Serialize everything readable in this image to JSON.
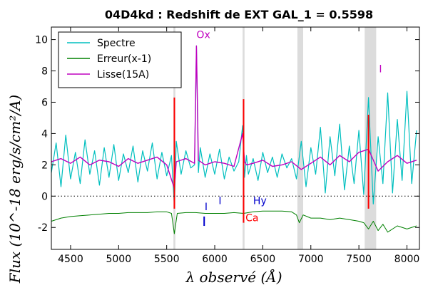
{
  "chart_data": {
    "type": "line",
    "title": "04D4kd : Redshift de EXT GAL_1 = 0.5598",
    "xlabel": "λ observé (Å)",
    "ylabel": "Flux (10^-18 erg/s/cm²/A)",
    "xlim": [
      4300,
      8130
    ],
    "ylim": [
      -3.4,
      10.8
    ],
    "x_ticks": [
      4500,
      5000,
      5500,
      6000,
      6500,
      7000,
      7500,
      8000
    ],
    "y_ticks": [
      -2,
      0,
      2,
      4,
      6,
      8,
      10
    ],
    "grid": false,
    "zero_line": true,
    "legend": {
      "position": "top-left",
      "entries": [
        {
          "label": "Spectre",
          "color": "#00bfbf"
        },
        {
          "label": "Erreur(x-1)",
          "color": "#008000"
        },
        {
          "label": "Lisse(15A)",
          "color": "#bf00bf"
        }
      ]
    },
    "series": [
      {
        "name": "Spectre",
        "color": "#00bfbf",
        "x": [
          4300,
          4350,
          4400,
          4450,
          4500,
          4550,
          4600,
          4650,
          4700,
          4750,
          4800,
          4850,
          4900,
          4950,
          5000,
          5050,
          5100,
          5150,
          5200,
          5250,
          5300,
          5350,
          5400,
          5450,
          5500,
          5550,
          5580,
          5600,
          5650,
          5700,
          5750,
          5790,
          5810,
          5830,
          5850,
          5900,
          5950,
          6000,
          6050,
          6100,
          6150,
          6200,
          6250,
          6290,
          6310,
          6330,
          6350,
          6400,
          6450,
          6500,
          6550,
          6600,
          6650,
          6700,
          6750,
          6800,
          6850,
          6900,
          6950,
          7000,
          7050,
          7100,
          7150,
          7200,
          7250,
          7300,
          7350,
          7400,
          7450,
          7500,
          7550,
          7600,
          7650,
          7700,
          7750,
          7800,
          7850,
          7900,
          7950,
          8000,
          8050,
          8100
        ],
        "y": [
          1.5,
          3.4,
          0.6,
          3.9,
          1.1,
          2.8,
          0.8,
          3.6,
          1.4,
          2.9,
          0.7,
          3.1,
          1.2,
          3.3,
          1.0,
          2.7,
          1.5,
          3.2,
          0.9,
          2.9,
          1.6,
          3.4,
          1.1,
          2.8,
          1.3,
          2.6,
          -0.6,
          3.5,
          1.4,
          2.9,
          1.8,
          2.0,
          9.6,
          1.5,
          3.1,
          1.2,
          2.7,
          1.4,
          3.0,
          1.1,
          2.5,
          1.6,
          2.2,
          4.5,
          1.2,
          2.6,
          1.4,
          2.4,
          1.0,
          2.8,
          1.5,
          2.5,
          1.2,
          2.7,
          1.8,
          2.4,
          1.1,
          3.5,
          0.6,
          3.1,
          1.4,
          4.4,
          0.2,
          3.8,
          1.3,
          4.6,
          0.4,
          3.2,
          0.8,
          4.2,
          0.1,
          6.3,
          -0.5,
          3.8,
          0.8,
          6.6,
          0.2,
          4.9,
          1.0,
          6.7,
          0.8,
          4.2
        ]
      },
      {
        "name": "Erreur(x-1)",
        "color": "#008000",
        "x": [
          4300,
          4400,
          4500,
          4600,
          4700,
          4800,
          4900,
          5000,
          5100,
          5200,
          5300,
          5400,
          5500,
          5550,
          5580,
          5610,
          5700,
          5800,
          5900,
          6000,
          6100,
          6200,
          6300,
          6400,
          6500,
          6600,
          6700,
          6800,
          6850,
          6880,
          6920,
          6960,
          7000,
          7100,
          7200,
          7300,
          7400,
          7500,
          7550,
          7600,
          7650,
          7700,
          7750,
          7800,
          7900,
          8000,
          8100
        ],
        "y": [
          -1.6,
          -1.4,
          -1.3,
          -1.25,
          -1.2,
          -1.15,
          -1.1,
          -1.1,
          -1.05,
          -1.05,
          -1.05,
          -1.0,
          -1.0,
          -1.1,
          -2.4,
          -1.1,
          -1.05,
          -1.05,
          -1.1,
          -1.1,
          -1.1,
          -1.05,
          -1.1,
          -1.0,
          -0.95,
          -0.95,
          -0.95,
          -1.0,
          -1.2,
          -1.7,
          -1.2,
          -1.3,
          -1.4,
          -1.4,
          -1.5,
          -1.4,
          -1.5,
          -1.6,
          -1.7,
          -2.1,
          -1.6,
          -2.2,
          -1.8,
          -2.3,
          -1.9,
          -2.1,
          -1.9
        ]
      },
      {
        "name": "Lisse(15A)",
        "color": "#bf00bf",
        "x": [
          4300,
          4400,
          4500,
          4600,
          4700,
          4800,
          4900,
          5000,
          5100,
          5200,
          5300,
          5400,
          5500,
          5580,
          5600,
          5700,
          5790,
          5810,
          5830,
          5900,
          6000,
          6100,
          6200,
          6290,
          6310,
          6330,
          6400,
          6500,
          6600,
          6700,
          6800,
          6900,
          7000,
          7100,
          7200,
          7300,
          7400,
          7500,
          7600,
          7700,
          7800,
          7900,
          8000,
          8100
        ],
        "y": [
          2.2,
          2.4,
          2.1,
          2.5,
          2.0,
          2.3,
          2.2,
          1.9,
          2.4,
          2.1,
          2.3,
          2.5,
          2.0,
          0.5,
          2.2,
          2.4,
          2.1,
          9.6,
          2.3,
          2.0,
          2.2,
          2.1,
          1.9,
          4.0,
          2.2,
          2.0,
          2.1,
          2.3,
          1.9,
          2.0,
          2.2,
          1.7,
          2.1,
          2.5,
          2.0,
          2.6,
          2.2,
          2.8,
          3.0,
          1.6,
          2.2,
          2.6,
          2.1,
          2.3
        ]
      }
    ],
    "shaded_bands": [
      {
        "x0": 5570,
        "x1": 5590
      },
      {
        "x0": 6290,
        "x1": 6310
      },
      {
        "x0": 6860,
        "x1": 6920
      },
      {
        "x0": 7560,
        "x1": 7680
      }
    ],
    "vertical_markers": [
      {
        "x": 5580,
        "y0": -0.8,
        "y1": 6.3,
        "color": "#ff0000"
      },
      {
        "x": 6300,
        "y0": -1.7,
        "y1": 6.2,
        "color": "#ff0000"
      },
      {
        "x": 7600,
        "y0": -0.8,
        "y1": 5.2,
        "color": "#ff0000"
      },
      {
        "x": 5890,
        "y0": -1.9,
        "y1": -1.3,
        "color": "#0000cc"
      }
    ],
    "line_labels": [
      {
        "text": "Ox",
        "x": 5810,
        "y": 10.1,
        "color": "#bf00bf"
      },
      {
        "text": "I",
        "x": 7710,
        "y": 7.9,
        "color": "#bf00bf"
      },
      {
        "text": "I",
        "x": 5895,
        "y": -0.9,
        "color": "#0000cc"
      },
      {
        "text": "I",
        "x": 6040,
        "y": -0.5,
        "color": "#0000cc"
      },
      {
        "text": "Hy",
        "x": 6400,
        "y": -0.5,
        "color": "#0000cc"
      },
      {
        "text": "Ca",
        "x": 6320,
        "y": -1.6,
        "color": "#ff0000"
      }
    ]
  }
}
